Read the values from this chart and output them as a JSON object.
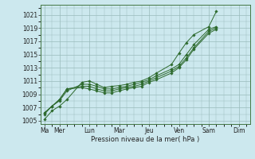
{
  "background_color": "#cce8ee",
  "grid_color": "#99bbbb",
  "line_color": "#2d6a2d",
  "marker_color": "#2d6a2d",
  "xlabel": "Pression niveau de la mer( hPa )",
  "ylim": [
    1004.5,
    1022.5
  ],
  "yticks": [
    1005,
    1007,
    1009,
    1011,
    1013,
    1015,
    1017,
    1019,
    1021
  ],
  "day_labels": [
    "Ma",
    "Mer",
    "Lun",
    "Mar",
    "Jeu",
    "Ven",
    "Sam",
    "Dim"
  ],
  "day_positions": [
    0,
    2,
    6,
    10,
    14,
    18,
    22,
    26
  ],
  "xlim": [
    -0.5,
    27.5
  ],
  "series": [
    [
      1005.2,
      1006.5,
      1007.2,
      1008.2,
      1010.8,
      1011.0,
      1010.5,
      1010.0,
      1010.2,
      1010.3,
      1010.5,
      1010.8,
      1011.0,
      1011.5,
      1012.2,
      1013.5,
      1015.2,
      1016.8,
      1018.0,
      1019.2,
      1021.5
    ],
    [
      1006.0,
      1007.2,
      1008.0,
      1009.5,
      1010.5,
      1010.5,
      1010.2,
      1009.8,
      1009.8,
      1010.0,
      1010.2,
      1010.5,
      1010.8,
      1011.2,
      1011.8,
      1012.8,
      1013.5,
      1015.0,
      1016.5,
      1018.8,
      1019.2
    ],
    [
      1006.2,
      1007.2,
      1008.2,
      1009.8,
      1010.2,
      1010.2,
      1009.8,
      1009.5,
      1009.5,
      1009.8,
      1010.0,
      1010.2,
      1010.5,
      1011.0,
      1011.5,
      1012.5,
      1013.2,
      1014.5,
      1016.0,
      1018.5,
      1019.0
    ],
    [
      1006.2,
      1007.2,
      1008.2,
      1009.8,
      1010.0,
      1009.8,
      1009.5,
      1009.2,
      1009.2,
      1009.5,
      1009.8,
      1010.0,
      1010.2,
      1010.8,
      1011.2,
      1012.2,
      1013.0,
      1014.2,
      1015.8,
      1018.2,
      1018.8
    ]
  ],
  "x_positions": [
    0,
    1,
    2,
    3,
    5,
    6,
    7,
    8,
    9,
    10,
    11,
    12,
    13,
    14,
    15,
    17,
    18,
    19,
    20,
    22,
    23
  ],
  "ylabel_fontsize": 5.5,
  "xlabel_fontsize": 6.0,
  "tick_labelsize": 5.5
}
